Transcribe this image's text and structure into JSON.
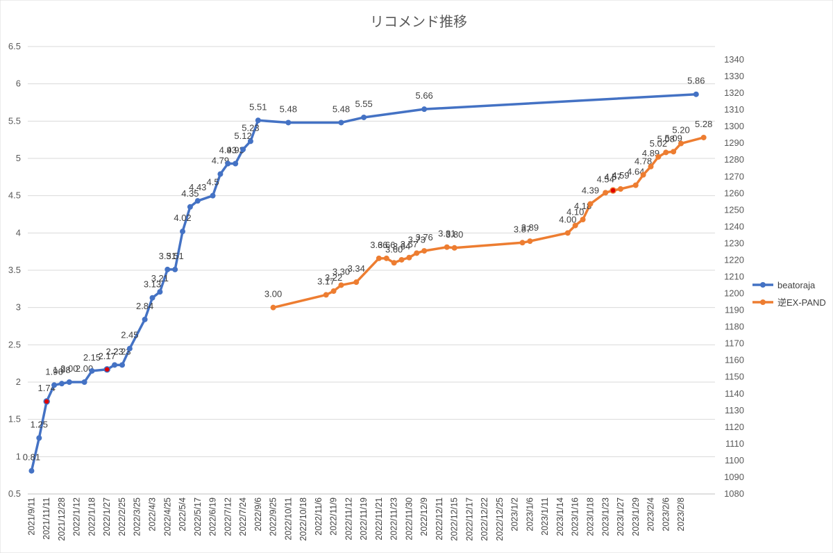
{
  "chart_data": {
    "type": "line",
    "title": "リコメンド推移",
    "left_axis": {
      "ylim": [
        0.5,
        6.5
      ],
      "ticks": [
        "0.5",
        "1",
        "1.5",
        "2",
        "2.5",
        "3",
        "3.5",
        "4",
        "4.5",
        "5",
        "5.5",
        "6",
        "6.5"
      ]
    },
    "right_axis": {
      "ylim": [
        1080,
        1340
      ],
      "ticks": [
        "1080",
        "1090",
        "1100",
        "1110",
        "1120",
        "1130",
        "1140",
        "1150",
        "1160",
        "1170",
        "1180",
        "1190",
        "1200",
        "1210",
        "1220",
        "1230",
        "1240",
        "1250",
        "1260",
        "1270",
        "1280",
        "1290",
        "1300",
        "1310",
        "1320",
        "1330",
        "1340"
      ]
    },
    "categories": [
      "2021/9/11",
      "2021/11/11",
      "2021/12/28",
      "2022/1/12",
      "2022/1/18",
      "2022/1/27",
      "2022/2/25",
      "2022/3/25",
      "2022/4/3",
      "2022/4/25",
      "2022/5/4",
      "2022/5/17",
      "2022/6/19",
      "2022/7/12",
      "2022/7/24",
      "2022/9/6",
      "2022/9/25",
      "2022/10/11",
      "2022/10/18",
      "2022/11/6",
      "2022/11/9",
      "2022/11/12",
      "2022/11/19",
      "2022/11/21",
      "2022/11/23",
      "2022/11/30",
      "2022/12/9",
      "2022/12/11",
      "2022/12/15",
      "2022/12/17",
      "2022/12/22",
      "2022/12/25",
      "2023/1/2",
      "2023/1/6",
      "2023/1/11",
      "2023/1/14",
      "2023/1/16",
      "2023/1/18",
      "2023/1/23",
      "2023/1/27",
      "2023/1/29",
      "2023/2/4",
      "2023/2/6",
      "2023/2/8"
    ],
    "grid": "horizontal",
    "legend_position": "right",
    "series": [
      {
        "name": "beatoraja",
        "axis": "left",
        "color": "#4472C4",
        "points": [
          {
            "x": 0.0,
            "y": 0.81,
            "label": "0.81"
          },
          {
            "x": 1.0,
            "y": 1.25,
            "label": "1.25"
          },
          {
            "x": 2.0,
            "y": 1.74,
            "label": "1.74",
            "highlight": true
          },
          {
            "x": 3.0,
            "y": 1.96,
            "label": "1.96"
          },
          {
            "x": 4.0,
            "y": 1.98,
            "label": "1.98"
          },
          {
            "x": 5.0,
            "y": 2.0,
            "label": "2.00"
          },
          {
            "x": 7.0,
            "y": 2.0,
            "label": "2.00"
          },
          {
            "x": 8.0,
            "y": 2.15,
            "label": "2.15"
          },
          {
            "x": 10.0,
            "y": 2.17,
            "label": "2.17",
            "highlight": true
          },
          {
            "x": 11.0,
            "y": 2.23,
            "label": "2.23"
          },
          {
            "x": 12.0,
            "y": 2.23,
            "label": "2.23"
          },
          {
            "x": 13.0,
            "y": 2.45,
            "label": "2.45"
          },
          {
            "x": 15.0,
            "y": 2.84,
            "label": "2.84"
          },
          {
            "x": 16.0,
            "y": 3.13,
            "label": "3.13"
          },
          {
            "x": 17.0,
            "y": 3.21,
            "label": "3.21"
          },
          {
            "x": 18.0,
            "y": 3.51,
            "label": "3.51"
          },
          {
            "x": 19.0,
            "y": 3.51,
            "label": "3.51"
          },
          {
            "x": 20.0,
            "y": 4.02,
            "label": "4.02"
          },
          {
            "x": 21.0,
            "y": 4.35,
            "label": "4.35"
          },
          {
            "x": 22.0,
            "y": 4.43,
            "label": "4.43"
          },
          {
            "x": 24.0,
            "y": 4.5,
            "label": "4.5"
          },
          {
            "x": 25.0,
            "y": 4.79,
            "label": "4.79"
          },
          {
            "x": 26.0,
            "y": 4.93,
            "label": "4.93"
          },
          {
            "x": 27.0,
            "y": 4.93,
            "label": "4.93"
          },
          {
            "x": 28.0,
            "y": 5.12,
            "label": "5.12"
          },
          {
            "x": 29.0,
            "y": 5.23,
            "label": "5.23"
          },
          {
            "x": 30.0,
            "y": 5.51,
            "label": "5.51"
          },
          {
            "x": 34.0,
            "y": 5.48,
            "label": "5.48"
          },
          {
            "x": 41.0,
            "y": 5.48,
            "label": "5.48"
          },
          {
            "x": 44.0,
            "y": 5.55,
            "label": "5.55"
          },
          {
            "x": 52.0,
            "y": 5.66,
            "label": "5.66"
          },
          {
            "x": 88.0,
            "y": 5.86,
            "label": "5.86"
          }
        ]
      },
      {
        "name": "逆EX-PAND",
        "axis": "left",
        "color": "#ED7D31",
        "points": [
          {
            "x": 32.0,
            "y": 3.0,
            "label": "3.00"
          },
          {
            "x": 39.0,
            "y": 3.17,
            "label": "3.17"
          },
          {
            "x": 40.0,
            "y": 3.22,
            "label": "3.22"
          },
          {
            "x": 41.0,
            "y": 3.3,
            "label": "3.30"
          },
          {
            "x": 43.0,
            "y": 3.34,
            "label": "3.34"
          },
          {
            "x": 46.0,
            "y": 3.66,
            "label": "3.66"
          },
          {
            "x": 47.0,
            "y": 3.66,
            "label": "3.66"
          },
          {
            "x": 48.0,
            "y": 3.6,
            "label": "3.60"
          },
          {
            "x": 49.0,
            "y": 3.64,
            "label": "3.64"
          },
          {
            "x": 50.0,
            "y": 3.67,
            "label": "3.67"
          },
          {
            "x": 51.0,
            "y": 3.73,
            "label": "3.73"
          },
          {
            "x": 52.0,
            "y": 3.76,
            "label": "3.76"
          },
          {
            "x": 55.0,
            "y": 3.81,
            "label": "3.81"
          },
          {
            "x": 56.0,
            "y": 3.8,
            "label": "3.80"
          },
          {
            "x": 65.0,
            "y": 3.87,
            "label": "3.87"
          },
          {
            "x": 66.0,
            "y": 3.89,
            "label": "3.89"
          },
          {
            "x": 71.0,
            "y": 4.0,
            "label": "4.00"
          },
          {
            "x": 72.0,
            "y": 4.1,
            "label": "4.10"
          },
          {
            "x": 73.0,
            "y": 4.18,
            "label": "4.18"
          },
          {
            "x": 74.0,
            "y": 4.39,
            "label": "4.39"
          },
          {
            "x": 76.0,
            "y": 4.54,
            "label": "4.54"
          },
          {
            "x": 77.0,
            "y": 4.57,
            "label": "4.57",
            "highlight": true
          },
          {
            "x": 78.0,
            "y": 4.59,
            "label": "4.59"
          },
          {
            "x": 80.0,
            "y": 4.64,
            "label": "4.64"
          },
          {
            "x": 81.0,
            "y": 4.78,
            "label": "4.78"
          },
          {
            "x": 82.0,
            "y": 4.89,
            "label": "4.89"
          },
          {
            "x": 83.0,
            "y": 5.02,
            "label": "5.02"
          },
          {
            "x": 84.0,
            "y": 5.08,
            "label": "5.08"
          },
          {
            "x": 85.0,
            "y": 5.09,
            "label": "5.09"
          },
          {
            "x": 86.0,
            "y": 5.2,
            "label": "5.20"
          },
          {
            "x": 89.0,
            "y": 5.28,
            "label": "5.28"
          }
        ]
      }
    ]
  }
}
